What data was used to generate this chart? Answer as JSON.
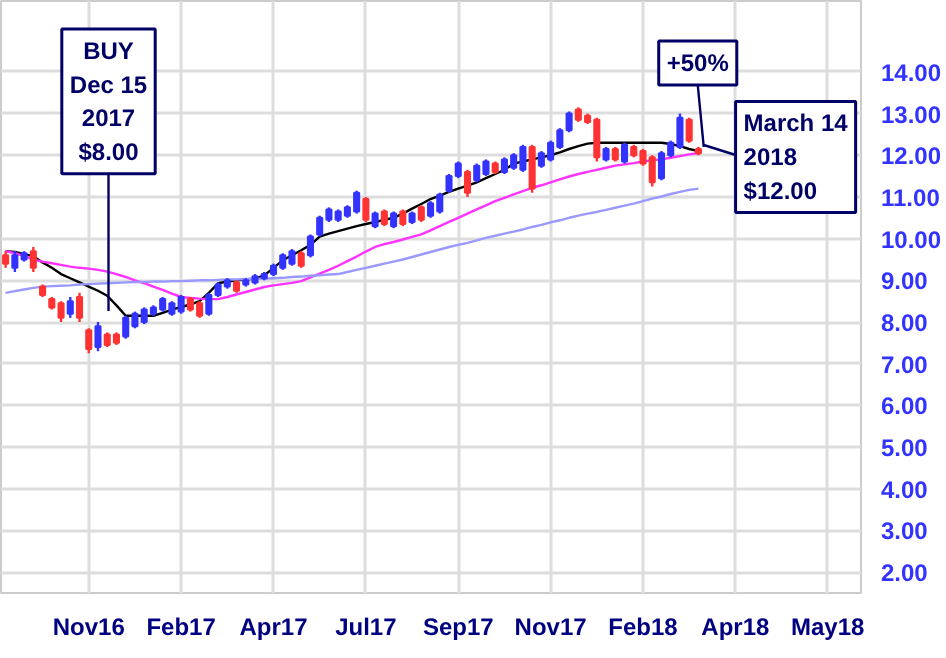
{
  "chart_data": {
    "type": "candlestick",
    "categories": [
      null,
      null,
      null,
      null,
      null,
      null,
      null,
      null,
      null,
      "Nov16",
      null,
      null,
      null,
      null,
      null,
      null,
      null,
      null,
      null,
      "Feb17",
      null,
      null,
      null,
      null,
      null,
      null,
      null,
      null,
      null,
      "Apr17",
      null,
      null,
      null,
      null,
      null,
      null,
      null,
      null,
      null,
      "Jul17",
      null,
      null,
      null,
      null,
      null,
      null,
      null,
      null,
      null,
      "Sep17",
      null,
      null,
      null,
      null,
      null,
      null,
      null,
      null,
      null,
      "Nov17",
      null,
      null,
      null,
      null,
      null,
      null,
      null,
      null,
      null,
      "Feb18",
      null,
      null,
      null,
      null,
      null,
      null,
      null,
      null,
      null,
      "Apr18",
      null,
      null,
      null,
      null,
      null,
      null,
      null,
      null,
      null,
      "May18",
      null,
      null,
      null
    ],
    "ohlc": [
      [
        9.6,
        9.7,
        9.3,
        9.4
      ],
      [
        9.3,
        9.7,
        9.2,
        9.6
      ],
      [
        9.5,
        9.7,
        9.45,
        9.65
      ],
      [
        9.7,
        9.8,
        9.2,
        9.3
      ],
      [
        8.85,
        8.9,
        8.6,
        8.65
      ],
      [
        8.55,
        8.6,
        8.3,
        8.35
      ],
      [
        8.45,
        8.5,
        8.0,
        8.1
      ],
      [
        8.2,
        8.6,
        8.1,
        8.5
      ],
      [
        8.6,
        8.7,
        8.0,
        8.1
      ],
      [
        7.8,
        7.85,
        7.25,
        7.35
      ],
      [
        7.4,
        8.0,
        7.3,
        7.9
      ],
      [
        7.7,
        7.75,
        7.4,
        7.45
      ],
      [
        7.7,
        7.75,
        7.45,
        7.5
      ],
      [
        7.65,
        8.15,
        7.6,
        8.1
      ],
      [
        7.9,
        8.25,
        7.85,
        8.2
      ],
      [
        8.0,
        8.35,
        7.95,
        8.3
      ],
      [
        8.2,
        8.4,
        8.15,
        8.35
      ],
      [
        8.3,
        8.6,
        8.25,
        8.55
      ],
      [
        8.2,
        8.5,
        8.15,
        8.45
      ],
      [
        8.25,
        8.65,
        8.2,
        8.6
      ],
      [
        8.55,
        8.6,
        8.25,
        8.3
      ],
      [
        8.45,
        8.5,
        8.1,
        8.15
      ],
      [
        8.2,
        8.7,
        8.15,
        8.65
      ],
      [
        8.65,
        8.95,
        8.6,
        8.9
      ],
      [
        8.85,
        9.05,
        8.8,
        9.0
      ],
      [
        8.95,
        9.0,
        8.7,
        8.75
      ],
      [
        8.9,
        9.05,
        8.85,
        9.0
      ],
      [
        8.95,
        9.15,
        8.9,
        9.1
      ],
      [
        9.05,
        9.2,
        9.0,
        9.15
      ],
      [
        9.15,
        9.4,
        9.1,
        9.35
      ],
      [
        9.3,
        9.65,
        9.25,
        9.6
      ],
      [
        9.4,
        9.75,
        9.35,
        9.7
      ],
      [
        9.65,
        9.7,
        9.3,
        9.35
      ],
      [
        9.6,
        10.1,
        9.55,
        10.05
      ],
      [
        10.1,
        10.55,
        10.05,
        10.5
      ],
      [
        10.45,
        10.75,
        10.4,
        10.7
      ],
      [
        10.45,
        10.7,
        10.4,
        10.65
      ],
      [
        10.55,
        10.8,
        10.5,
        10.75
      ],
      [
        10.65,
        11.15,
        10.6,
        11.1
      ],
      [
        10.95,
        11.0,
        10.4,
        10.45
      ],
      [
        10.3,
        10.65,
        10.25,
        10.6
      ],
      [
        10.65,
        10.7,
        10.3,
        10.35
      ],
      [
        10.3,
        10.65,
        10.25,
        10.6
      ],
      [
        10.65,
        10.7,
        10.3,
        10.35
      ],
      [
        10.4,
        10.65,
        10.35,
        10.6
      ],
      [
        10.75,
        10.8,
        10.4,
        10.45
      ],
      [
        10.55,
        10.9,
        10.5,
        10.85
      ],
      [
        10.65,
        11.1,
        10.6,
        11.05
      ],
      [
        11.15,
        11.55,
        11.1,
        11.5
      ],
      [
        11.5,
        11.85,
        11.45,
        11.8
      ],
      [
        11.6,
        11.65,
        11.0,
        11.1
      ],
      [
        11.4,
        11.8,
        11.35,
        11.75
      ],
      [
        11.55,
        11.9,
        11.5,
        11.85
      ],
      [
        11.8,
        11.85,
        11.55,
        11.6
      ],
      [
        11.6,
        11.95,
        11.55,
        11.9
      ],
      [
        11.7,
        12.05,
        11.65,
        12.0
      ],
      [
        11.65,
        12.25,
        11.6,
        12.2
      ],
      [
        12.2,
        12.25,
        11.1,
        11.2
      ],
      [
        11.75,
        12.1,
        11.7,
        12.05
      ],
      [
        11.9,
        12.35,
        11.85,
        12.3
      ],
      [
        12.2,
        12.65,
        12.15,
        12.6
      ],
      [
        12.6,
        13.05,
        12.55,
        13.0
      ],
      [
        13.1,
        13.15,
        12.8,
        12.85
      ],
      [
        12.95,
        13.0,
        12.75,
        12.8
      ],
      [
        12.85,
        12.9,
        11.85,
        11.95
      ],
      [
        11.9,
        12.2,
        11.85,
        12.15
      ],
      [
        12.15,
        12.2,
        11.85,
        11.9
      ],
      [
        11.85,
        12.3,
        11.8,
        12.25
      ],
      [
        12.2,
        12.25,
        11.95,
        12.0
      ],
      [
        12.1,
        12.15,
        11.75,
        11.8
      ],
      [
        11.95,
        12.0,
        11.25,
        11.35
      ],
      [
        11.45,
        12.1,
        11.4,
        12.05
      ],
      [
        12.0,
        12.35,
        11.95,
        12.3
      ],
      [
        12.2,
        13.0,
        12.15,
        12.9
      ],
      [
        12.85,
        12.9,
        12.3,
        12.35
      ],
      [
        12.15,
        12.2,
        12.0,
        12.05
      ],
      null,
      null,
      null,
      null,
      null,
      null,
      null,
      null,
      null,
      null,
      null,
      null,
      null,
      null,
      null,
      null,
      null
    ],
    "colors": [
      "#ff3333",
      "#3333ff",
      "#3333ff",
      "#ff3333",
      "#ff3333",
      "#ff3333",
      "#ff3333",
      "#3333ff",
      "#ff3333",
      "#ff3333",
      "#3333ff",
      "#ff3333",
      "#ff3333",
      "#3333ff",
      "#3333ff",
      "#3333ff",
      "#3333ff",
      "#3333ff",
      "#3333ff",
      "#3333ff",
      "#ff3333",
      "#ff3333",
      "#3333ff",
      "#3333ff",
      "#3333ff",
      "#ff3333",
      "#3333ff",
      "#3333ff",
      "#3333ff",
      "#3333ff",
      "#3333ff",
      "#3333ff",
      "#ff3333",
      "#3333ff",
      "#3333ff",
      "#3333ff",
      "#3333ff",
      "#3333ff",
      "#3333ff",
      "#ff3333",
      "#3333ff",
      "#ff3333",
      "#3333ff",
      "#ff3333",
      "#3333ff",
      "#ff3333",
      "#3333ff",
      "#3333ff",
      "#3333ff",
      "#3333ff",
      "#ff3333",
      "#3333ff",
      "#3333ff",
      "#ff3333",
      "#3333ff",
      "#3333ff",
      "#3333ff",
      "#ff3333",
      "#3333ff",
      "#3333ff",
      "#3333ff",
      "#3333ff",
      "#ff3333",
      "#ff3333",
      "#ff3333",
      "#3333ff",
      "#ff3333",
      "#3333ff",
      "#ff3333",
      "#ff3333",
      "#ff3333",
      "#3333ff",
      "#3333ff",
      "#3333ff",
      "#ff3333",
      "#ff3333",
      null,
      null,
      null,
      null,
      null,
      null,
      null,
      null,
      null,
      null,
      null,
      null,
      null,
      null,
      null,
      null,
      null
    ],
    "series": [
      {
        "type": "line",
        "color": "#000000",
        "values": [
          9.7,
          9.68,
          9.63,
          9.58,
          9.43,
          9.3,
          9.15,
          9.05,
          8.95,
          8.85,
          8.75,
          8.63,
          8.4,
          8.15,
          8.15,
          8.15,
          8.15,
          8.22,
          8.3,
          8.36,
          8.42,
          8.5,
          8.7,
          8.93,
          8.97,
          9.0,
          9.02,
          9.04,
          9.12,
          9.3,
          9.48,
          9.6,
          9.72,
          9.85,
          10.05,
          10.12,
          10.18,
          10.24,
          10.3,
          10.35,
          10.4,
          10.45,
          10.5,
          10.6,
          10.72,
          10.83,
          10.95,
          11.03,
          11.12,
          11.2,
          11.27,
          11.35,
          11.45,
          11.55,
          11.65,
          11.8,
          11.85,
          11.9,
          11.95,
          12.0,
          12.07,
          12.15,
          12.22,
          12.28,
          12.3,
          12.3,
          12.3,
          12.3,
          12.3,
          12.3,
          12.3,
          12.3,
          12.27,
          12.22,
          12.15,
          12.1,
          null,
          null,
          null,
          null,
          null,
          null,
          null,
          null,
          null,
          null,
          null,
          null,
          null,
          null,
          null,
          null,
          null
        ]
      },
      {
        "type": "line",
        "color": "#ff33ff",
        "values": [
          9.7,
          9.65,
          9.58,
          9.5,
          9.45,
          9.41,
          9.37,
          9.33,
          9.3,
          9.28,
          9.25,
          9.21,
          9.15,
          9.08,
          9.0,
          8.93,
          8.85,
          8.77,
          8.68,
          8.6,
          8.58,
          8.56,
          8.55,
          8.55,
          8.6,
          8.66,
          8.72,
          8.78,
          8.84,
          8.88,
          8.91,
          8.94,
          8.98,
          9.07,
          9.16,
          9.25,
          9.35,
          9.46,
          9.57,
          9.69,
          9.8,
          9.87,
          9.92,
          9.98,
          10.04,
          10.1,
          10.2,
          10.3,
          10.4,
          10.5,
          10.6,
          10.7,
          10.8,
          10.9,
          10.98,
          11.06,
          11.14,
          11.22,
          11.28,
          11.35,
          11.42,
          11.49,
          11.55,
          11.6,
          11.65,
          11.7,
          11.75,
          11.78,
          11.81,
          11.85,
          11.88,
          11.9,
          11.94,
          11.98,
          12.02,
          12.05,
          null,
          null,
          null,
          null,
          null,
          null,
          null,
          null,
          null,
          null,
          null,
          null,
          null,
          null,
          null,
          null,
          null
        ]
      },
      {
        "type": "line",
        "color": "#9999ff",
        "values": [
          8.7,
          8.74,
          8.78,
          8.82,
          8.85,
          8.86,
          8.87,
          8.88,
          8.9,
          8.91,
          8.92,
          8.93,
          8.94,
          8.95,
          8.96,
          8.96,
          8.97,
          8.97,
          8.98,
          8.98,
          8.99,
          9.0,
          9.0,
          9.01,
          9.02,
          9.02,
          9.03,
          9.04,
          9.04,
          9.05,
          9.06,
          9.08,
          9.09,
          9.11,
          9.12,
          9.14,
          9.15,
          9.2,
          9.25,
          9.3,
          9.35,
          9.4,
          9.45,
          9.5,
          9.56,
          9.62,
          9.68,
          9.74,
          9.8,
          9.85,
          9.9,
          9.96,
          10.02,
          10.07,
          10.12,
          10.17,
          10.22,
          10.28,
          10.33,
          10.39,
          10.44,
          10.5,
          10.55,
          10.6,
          10.64,
          10.69,
          10.74,
          10.79,
          10.84,
          10.9,
          10.96,
          11.01,
          11.07,
          11.12,
          11.17,
          11.2,
          null,
          null,
          null,
          null,
          null,
          null,
          null,
          null,
          null,
          null,
          null,
          null,
          null,
          null,
          null,
          null,
          null
        ]
      }
    ],
    "annotations": [
      "BUY\nDec 15\n2017\n$8.00",
      {
        "text": "+50%",
        "y": 12.2
      },
      "March 14\n2018\n$12.00"
    ],
    "ylim": [
      1.5,
      15.7
    ],
    "yticks": [
      {
        "value": 2,
        "label": "2.00"
      },
      {
        "value": 3,
        "label": "3.00"
      },
      {
        "value": 4,
        "label": "4.00"
      },
      {
        "value": 5,
        "label": "5.00"
      },
      {
        "value": 6,
        "label": "6.00"
      },
      {
        "value": 7,
        "label": "7.00"
      },
      {
        "value": 8,
        "label": "8.00"
      },
      {
        "value": 9,
        "label": "9.00"
      },
      {
        "value": 10,
        "label": "10.00"
      },
      {
        "value": 11,
        "label": "11.00"
      },
      {
        "value": 12,
        "label": "12.00"
      },
      {
        "value": 13,
        "label": "13.00"
      },
      {
        "value": 14,
        "label": "14.00"
      }
    ],
    "grid": true
  }
}
